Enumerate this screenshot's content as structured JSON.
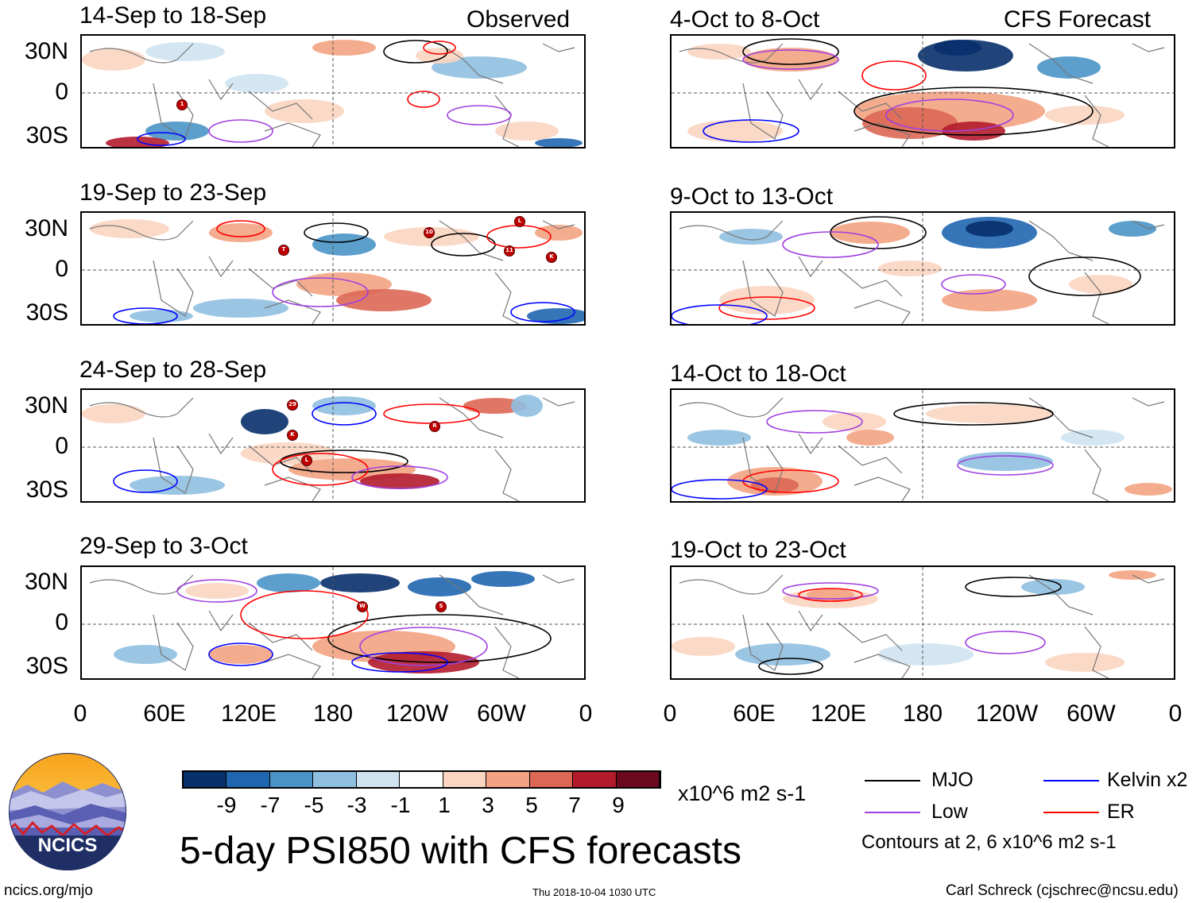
{
  "header": {
    "observed_label": "Observed",
    "forecast_label": "CFS Forecast"
  },
  "panels_observed": [
    {
      "title": "14-Sep to 18-Sep"
    },
    {
      "title": "19-Sep to 23-Sep"
    },
    {
      "title": "24-Sep to 28-Sep"
    },
    {
      "title": "29-Sep to 3-Oct"
    }
  ],
  "panels_forecast": [
    {
      "title": "4-Oct to 8-Oct"
    },
    {
      "title": "9-Oct to 13-Oct"
    },
    {
      "title": "14-Oct to 18-Oct"
    },
    {
      "title": "19-Oct to 23-Oct"
    }
  ],
  "axes": {
    "lat_labels": [
      "30N",
      "0",
      "30S"
    ],
    "lon_labels": [
      "0",
      "60E",
      "120E",
      "180",
      "120W",
      "60W",
      "0"
    ]
  },
  "colorbar": {
    "labels": [
      "-9",
      "-7",
      "-5",
      "-3",
      "-1",
      "1",
      "3",
      "5",
      "7",
      "9"
    ],
    "colors": [
      "#08306b",
      "#1f66b0",
      "#4a93c6",
      "#8fbfe0",
      "#cfe3f1",
      "#ffffff",
      "#fbd5c1",
      "#f3a383",
      "#dd6755",
      "#b31b2c",
      "#6b0a1f"
    ],
    "units": "x10^6 m2 s-1"
  },
  "legend": {
    "items": [
      {
        "label": "MJO",
        "color": "#000000"
      },
      {
        "label": "Kelvin x2",
        "color": "#0000ff"
      },
      {
        "label": "Low",
        "color": "#a040e0"
      },
      {
        "label": "ER",
        "color": "#ff0000"
      }
    ],
    "contours_note": "Contours at 2, 6 x10^6 m2 s-1"
  },
  "logo": {
    "text": "NCICS"
  },
  "title": "5-day PSI850 with CFS forecasts",
  "footer": {
    "url": "ncics.org/mjo",
    "timestamp": "Thu 2018-10-04 1030 UTC",
    "credit": "Carl Schreck (cjschrec@ncsu.edu)"
  },
  "storm_markers": [
    {
      "panel": "14-Sep to 18-Sep",
      "label": "1"
    },
    {
      "panel": "19-Sep to 23-Sep",
      "label": "T"
    },
    {
      "panel": "19-Sep to 23-Sep",
      "label": "10"
    },
    {
      "panel": "19-Sep to 23-Sep",
      "label": "L"
    },
    {
      "panel": "19-Sep to 23-Sep",
      "label": "11"
    },
    {
      "panel": "19-Sep to 23-Sep",
      "label": "K"
    },
    {
      "panel": "24-Sep to 28-Sep",
      "label": "29"
    },
    {
      "panel": "24-Sep to 28-Sep",
      "label": "K"
    },
    {
      "panel": "24-Sep to 28-Sep",
      "label": "L"
    },
    {
      "panel": "24-Sep to 28-Sep",
      "label": "R"
    },
    {
      "panel": "29-Sep to 3-Oct",
      "label": "W"
    },
    {
      "panel": "29-Sep to 3-Oct",
      "label": "S"
    }
  ]
}
